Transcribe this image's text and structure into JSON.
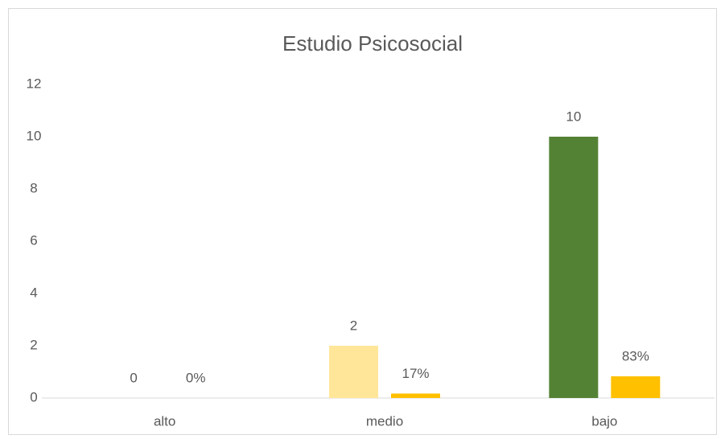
{
  "chart_data": {
    "type": "bar",
    "title": "Estudio Psicosocial",
    "categories": [
      "alto",
      "medio",
      "bajo"
    ],
    "series": [
      {
        "values": [
          0,
          2,
          10
        ],
        "colors": [
          "#ffe699",
          "#ffe699",
          "#548235"
        ]
      },
      {
        "values": [
          0,
          0.17,
          0.83
        ],
        "value_labels": [
          "0%",
          "17%",
          "83%"
        ],
        "color": "#ffc000"
      }
    ],
    "ylim": [
      0,
      12
    ],
    "yticks": [
      0,
      2,
      4,
      6,
      8,
      10,
      12
    ],
    "grid": false
  }
}
